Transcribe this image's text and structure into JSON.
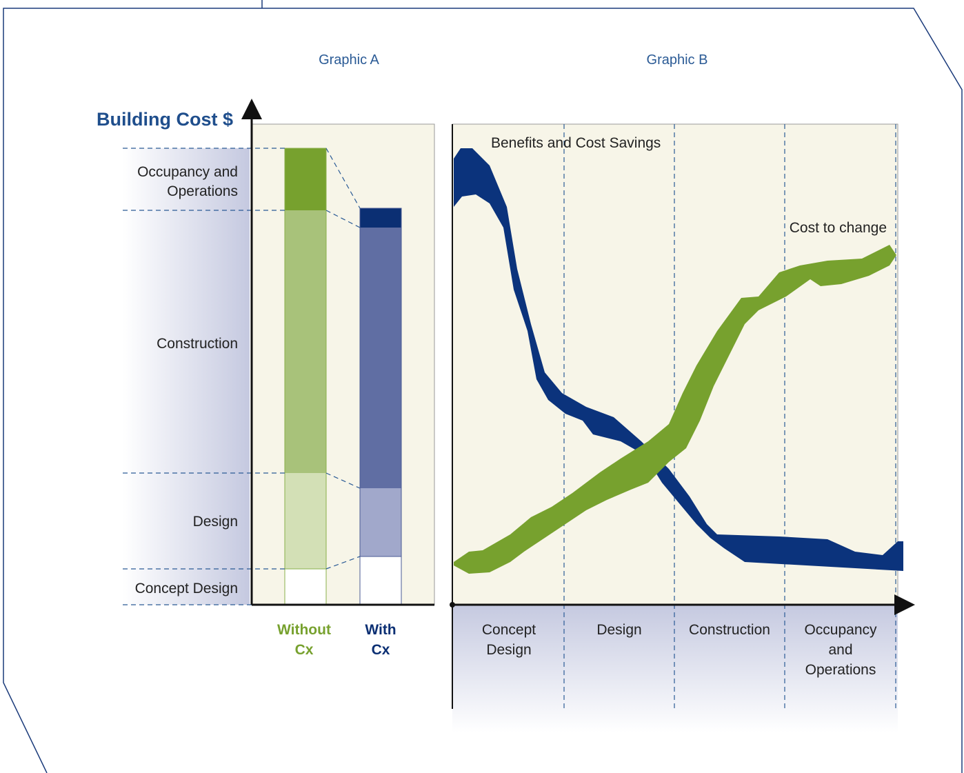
{
  "graphic_a": {
    "title": "Graphic A",
    "axis_label": "Building Cost $",
    "y_labels": [
      {
        "lines": [
          "Occupancy and",
          "Operations"
        ]
      },
      {
        "lines": [
          "Construction"
        ]
      },
      {
        "lines": [
          "Design"
        ]
      },
      {
        "lines": [
          "Concept Design"
        ]
      }
    ],
    "bars": [
      {
        "lines": [
          "Without",
          "Cx"
        ]
      },
      {
        "lines": [
          "With",
          "Cx"
        ]
      }
    ]
  },
  "graphic_b": {
    "title": "Graphic B",
    "curves": [
      "Benefits and Cost Savings",
      "Cost to change"
    ],
    "x_labels": [
      {
        "lines": [
          "Concept",
          "Design"
        ]
      },
      {
        "lines": [
          "Design"
        ]
      },
      {
        "lines": [
          "Construction"
        ]
      },
      {
        "lines": [
          "Occupancy",
          "and",
          "Operations"
        ]
      }
    ]
  }
}
